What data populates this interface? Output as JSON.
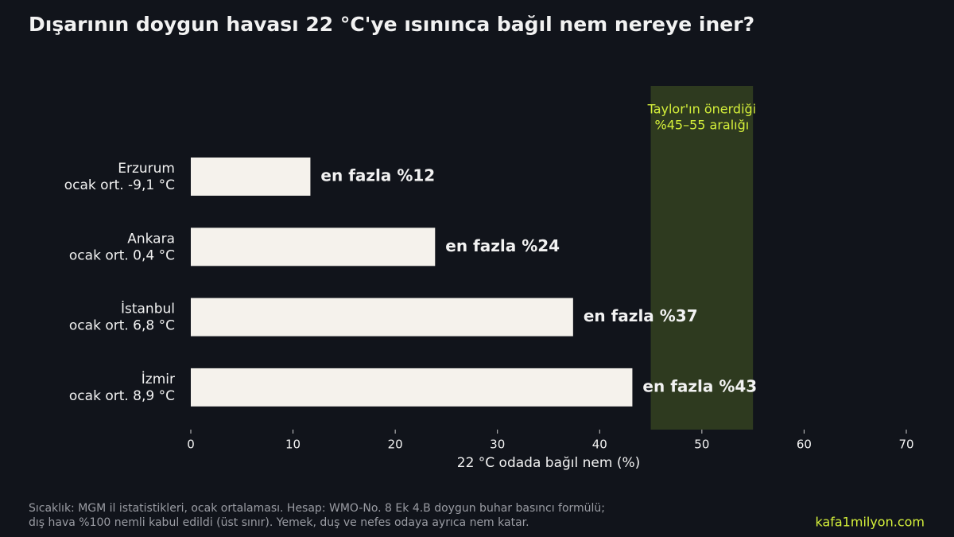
{
  "chart_data": {
    "type": "hbar",
    "title": "Dışarının doygun havası 22 °C'ye ısınınca bağıl nem nereye iner?",
    "categories": [
      "Erzurum",
      "Ankara",
      "İstanbul",
      "İzmir"
    ],
    "category_notes": [
      "ocak ort. -9,1 °C",
      "ocak ort. 0,4 °C",
      "ocak ort. 6,8 °C",
      "ocak ort. 8,9 °C"
    ],
    "values": [
      11.7,
      23.9,
      37.4,
      43.2
    ],
    "value_labels": [
      "en fazla %12",
      "en fazla %24",
      "en fazla %37",
      "en fazla %43"
    ],
    "color": "#f5f2ec",
    "xlabel": "22 °C odada bağıl nem (%)",
    "xlim": [
      0,
      70
    ],
    "xticks": [
      0,
      10,
      20,
      30,
      40,
      50,
      60,
      70
    ],
    "band": {
      "range": [
        45,
        55
      ],
      "color": "#2e3a1f",
      "label": [
        "Taylor'ın önerdiği",
        "%45–55 aralığı"
      ],
      "label_color": "#d4ef3a"
    },
    "source": [
      "Sıcaklık: MGM il istatistikleri, ocak ortalaması. Hesap: WMO-No. 8 Ek 4.B doygun buhar basıncı formülü;",
      "dış hava %100 nemli kabul edildi (üst sınır). Yemek, duş ve nefes odaya ayrıca nem katar."
    ],
    "brand": "kafa1milyon.com"
  }
}
